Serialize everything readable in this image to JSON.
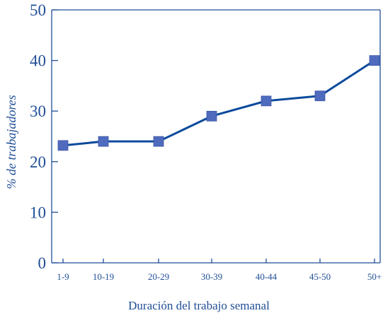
{
  "chart_data": {
    "type": "line",
    "title": "",
    "xlabel": "Duración del trabajo semanal",
    "ylabel": "% de trabajadores",
    "categories": [
      "1-9",
      "10-19",
      "20-29",
      "30-39",
      "40-44",
      "45-50",
      "50+"
    ],
    "series": [
      {
        "values": [
          23.2,
          24,
          24,
          29,
          32,
          33,
          40
        ]
      }
    ],
    "ylim": [
      0,
      50
    ],
    "yticks": [
      "0",
      "10",
      "20",
      "30",
      "40",
      "50"
    ],
    "grid": false,
    "legend": "none",
    "colors": {
      "line": "#0b4a9c",
      "marker": "#4f6bbd",
      "text": "#1f4e96",
      "axis": "#1f4e96"
    }
  }
}
